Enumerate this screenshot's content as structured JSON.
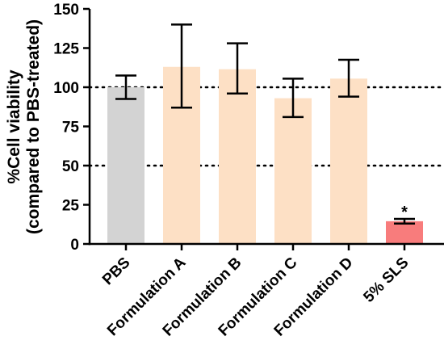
{
  "chart_data": {
    "type": "bar",
    "ylabel_line1": "%Cell viability",
    "ylabel_line2": "(compared to PBS-treated)",
    "xlabel": "",
    "ylim": [
      0,
      150
    ],
    "yticks": [
      "0",
      "25",
      "50",
      "75",
      "100",
      "125",
      "150"
    ],
    "categories": [
      "PBS",
      "Formulation A",
      "Formulation B",
      "Formulation C",
      "Formulation D",
      "5% SLS"
    ],
    "values": [
      100,
      113,
      111.5,
      93,
      105.5,
      14.5
    ],
    "error_low": [
      92.5,
      87,
      96,
      81,
      94,
      13
    ],
    "error_high": [
      107.5,
      140,
      128,
      105.5,
      117.5,
      16
    ],
    "bar_colors": [
      "#d3d3d3",
      "#fde0c5",
      "#fde0c5",
      "#fde0c5",
      "#fde0c5",
      "#f87c7c"
    ],
    "reference_lines": [
      100,
      50
    ],
    "annotations": [
      {
        "category": "5% SLS",
        "text": "*"
      }
    ],
    "grid": false,
    "legend": "none"
  }
}
